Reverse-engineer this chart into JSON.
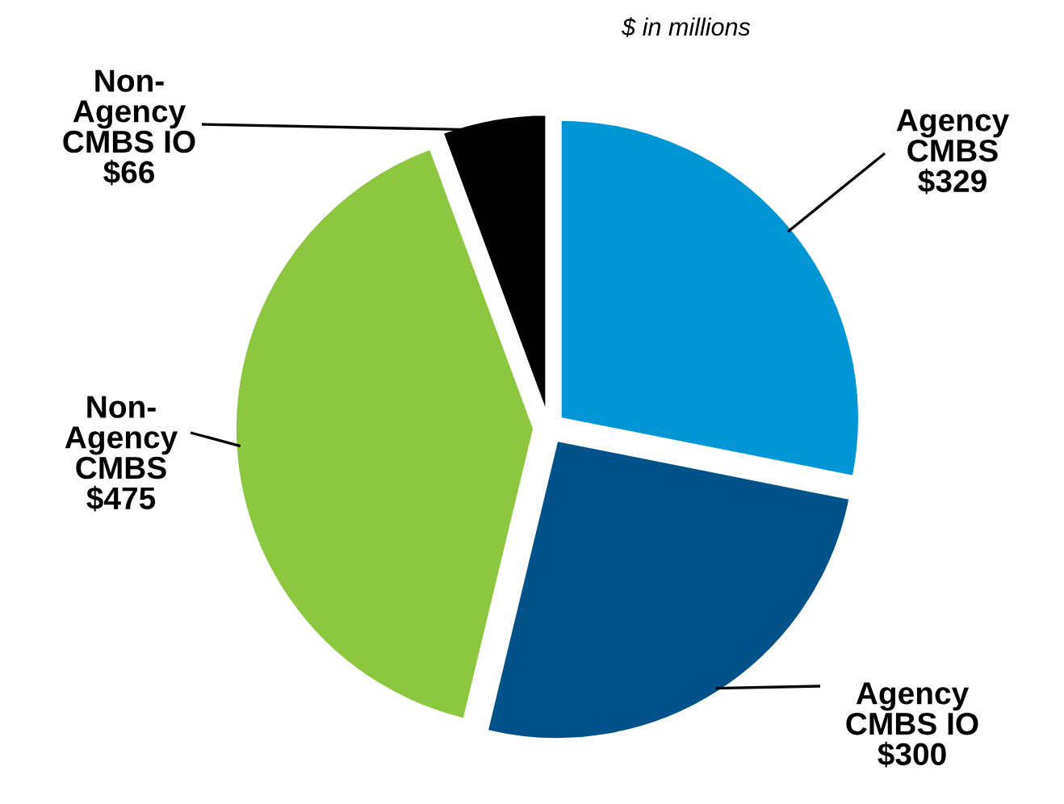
{
  "chart_data": {
    "type": "pie",
    "title": "$ in millions",
    "categories": [
      "Agency\nCMBS",
      "Agency\nCMBS IO",
      "Non-\nAgency\nCMBS",
      "Non-\nAgency\nCMBS IO"
    ],
    "values": [
      329,
      300,
      475,
      66
    ],
    "value_labels": [
      "$329",
      "$300",
      "$475",
      "$66"
    ],
    "colors": [
      "#0096d6",
      "#005288",
      "#8dc63f",
      "#000000"
    ],
    "legend": false
  }
}
